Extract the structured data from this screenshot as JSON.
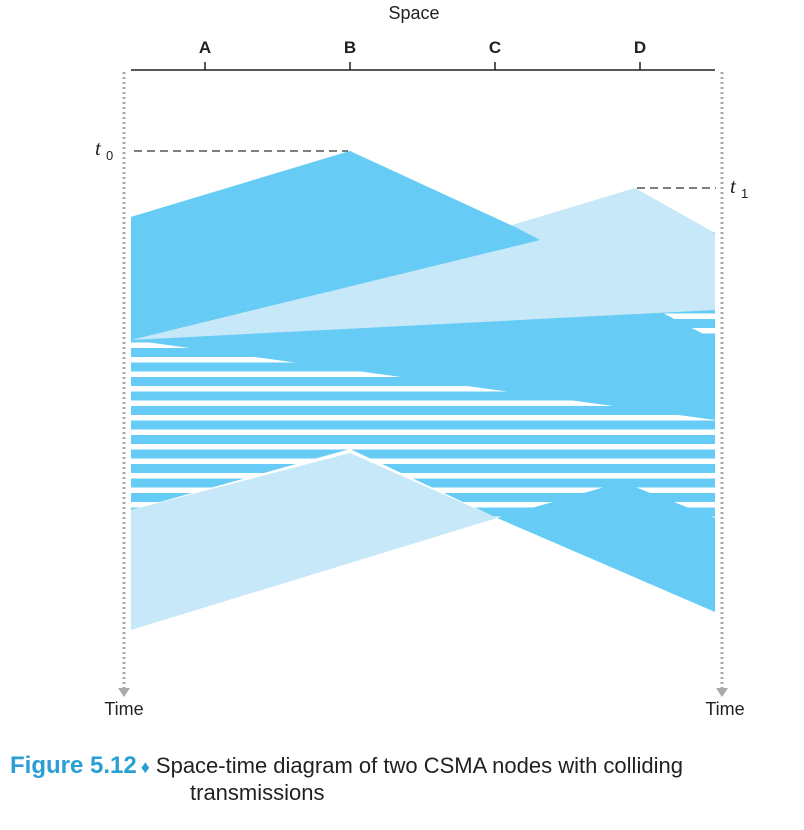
{
  "diagram": {
    "space_label": "Space",
    "nodes": [
      "A",
      "B",
      "C",
      "D"
    ],
    "t0": "t",
    "t0_sub": "0",
    "t1": "t",
    "t1_sub": "1",
    "time_left": "Time",
    "time_right": "Time",
    "colors": {
      "dark": "#66ccf5",
      "light": "#c6e8f8",
      "stripe_bg": "#ffffff",
      "dash": "#555555"
    }
  },
  "caption": {
    "figure": "Figure 5.12",
    "diamond": "♦",
    "line1": "Space-time diagram of two CSMA nodes with colliding",
    "line2": "transmissions"
  }
}
